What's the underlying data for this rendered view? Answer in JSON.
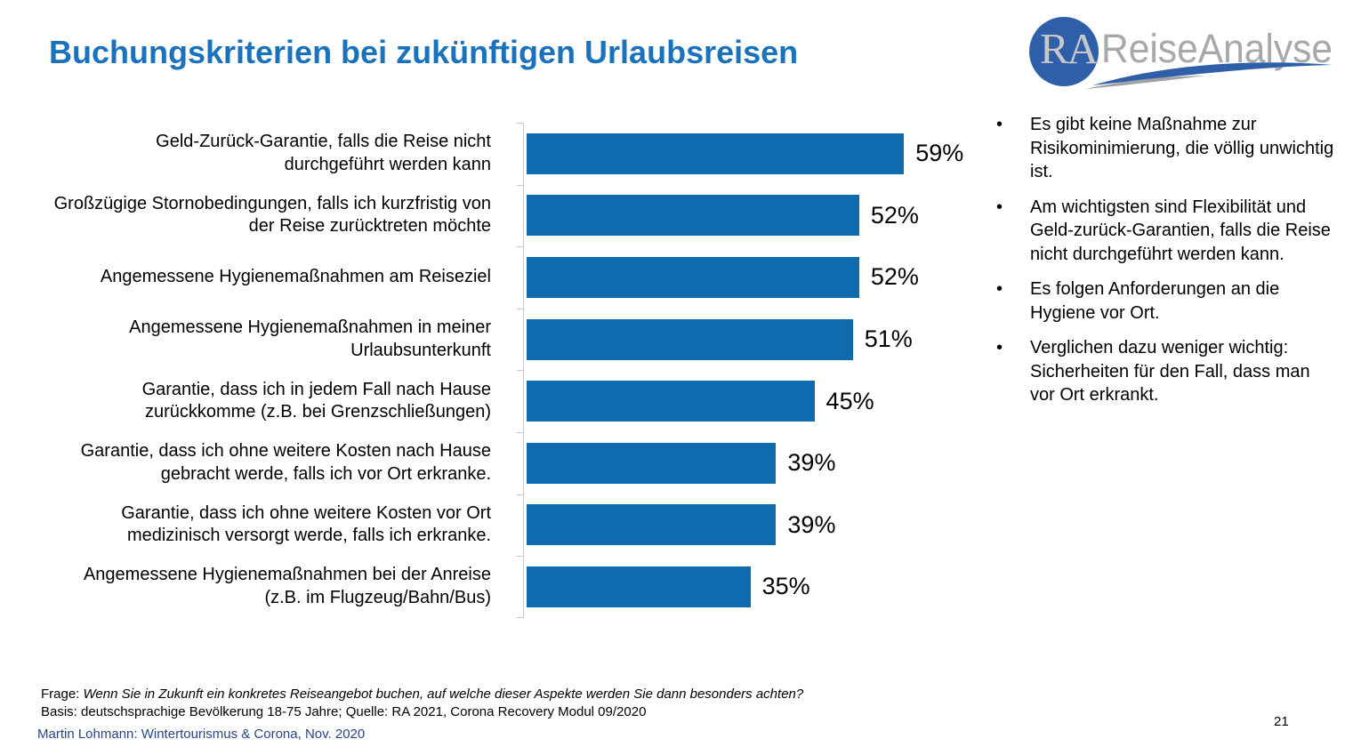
{
  "slide": {
    "title": "Buchungskriterien bei zukünftigen Urlaubsreisen",
    "page_number": "21",
    "credit": "Martin Lohmann: Wintertourismus & Corona, Nov.  2020"
  },
  "logo": {
    "initials": "RA",
    "name": "ReiseAnalyse"
  },
  "chart_data": {
    "type": "bar",
    "orientation": "horizontal",
    "title": "Buchungskriterien bei zukünftigen Urlaubsreisen",
    "categories": [
      "Geld-Zurück-Garantie, falls die Reise nicht durchgeführt werden kann",
      "Großzügige Stornobedingungen, falls ich kurzfristig von der Reise zurücktreten möchte",
      "Angemessene Hygienemaßnahmen am Reiseziel",
      "Angemessene Hygienemaßnahmen in meiner Urlaubsunterkunft",
      "Garantie, dass ich in jedem Fall nach Hause zurückkomme (z.B. bei Grenzschließungen)",
      "Garantie, dass ich ohne weitere Kosten nach Hause gebracht werde, falls ich vor Ort erkranke.",
      "Garantie, dass ich ohne weitere Kosten vor Ort medizinisch versorgt werde, falls ich erkranke.",
      "Angemessene Hygienemaßnahmen bei der Anreise (z.B. im Flugzeug/Bahn/Bus)"
    ],
    "values": [
      59,
      52,
      52,
      51,
      45,
      39,
      39,
      35
    ],
    "unit": "%",
    "xlim": [
      0,
      68
    ],
    "grid": false,
    "legend": false,
    "value_labels": "end-of-bar",
    "bar_color": "#0E6BAD",
    "axis_color": "#C9C9C9"
  },
  "insights": {
    "items": [
      "Es gibt keine Maßnahme zur Risikominimierung, die völlig unwichtig ist.",
      "Am wichtigsten sind Flexibilität und Geld-zurück-Garantien, falls die Reise nicht durchgeführt werden kann.",
      "Es folgen Anforderungen an die Hygiene vor Ort.",
      "Verglichen dazu weniger wichtig: Sicherheiten für den Fall, dass man vor Ort erkrankt."
    ]
  },
  "footer": {
    "frage_label": "Frage:",
    "frage_text": "Wenn Sie in Zukunft ein konkretes Reiseangebot buchen, auf welche dieser Aspekte werden Sie dann besonders achten?",
    "basis_text": "Basis: deutschsprachige Bevölkerung 18-75 Jahre; Quelle: RA 2021, Corona Recovery Modul 09/2020"
  },
  "colors": {
    "title_blue": "#1B72BC",
    "bar_blue": "#0E6BAD",
    "credit_blue": "#2A4584",
    "logo_circle_blue": "#2F5FA8",
    "logo_gray": "#A6A8AB",
    "axis_gray": "#C9C9C9"
  }
}
